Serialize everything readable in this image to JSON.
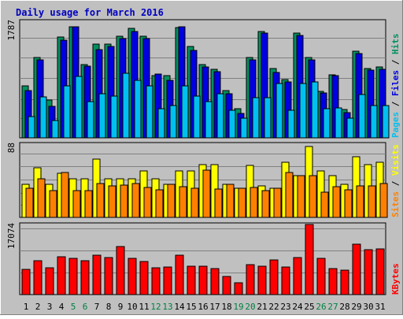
{
  "colors": {
    "background": "#c0c0c0",
    "plot_background": "#c0c0c0",
    "gridline": "#808080",
    "title": "#0000c0",
    "hits": "#009060",
    "files": "#0000e0",
    "pages": "#00c0f0",
    "visits": "#ffff00",
    "sites": "#ff8000",
    "kbytes": "#ff0000",
    "weekend_label": "#008040",
    "weekday_label": "#000000"
  },
  "chart_data": {
    "type": "bar",
    "title": "Daily usage for March 2016",
    "x": [
      "1",
      "2",
      "3",
      "4",
      "5",
      "6",
      "7",
      "8",
      "9",
      "10",
      "11",
      "12",
      "13",
      "14",
      "15",
      "16",
      "17",
      "18",
      "19",
      "20",
      "21",
      "22",
      "23",
      "24",
      "25",
      "26",
      "27",
      "28",
      "29",
      "30",
      "31"
    ],
    "weekend_days": [
      "5",
      "6",
      "12",
      "13",
      "19",
      "20",
      "26",
      "27"
    ],
    "panels": [
      {
        "id": "hits_files_pages",
        "ymax_label": "1787",
        "ymax": 1787,
        "legend": [
          {
            "text": "Pages",
            "color": "#00c0f0"
          },
          {
            "text": "Files",
            "color": "#0000e0"
          },
          {
            "text": "Hits",
            "color": "#009060"
          }
        ],
        "series": [
          {
            "name": "Hits",
            "color": "#009060",
            "values": [
              795,
              1233,
              574,
              1540,
              1703,
              1125,
              1432,
              1432,
              1558,
              1674,
              1558,
              955,
              957,
              1691,
              1400,
              1125,
              1052,
              721,
              450,
              1235,
              1635,
              1062,
              895,
              1608,
              1235,
              718,
              967,
              440,
              1325,
              1066,
              1086
            ]
          },
          {
            "name": "Files",
            "color": "#0000e0",
            "values": [
              720,
              1200,
              480,
              1500,
              1700,
              1100,
              1350,
              1400,
              1520,
              1630,
              1520,
              975,
              880,
              1700,
              1340,
              1090,
              1010,
              680,
              380,
              1200,
              1600,
              1000,
              860,
              1570,
              1190,
              690,
              950,
              390,
              1290,
              1040,
              1050
            ]
          },
          {
            "name": "Pages",
            "color": "#00c0f0",
            "values": [
              320,
              630,
              270,
              800,
              940,
              550,
              680,
              640,
              990,
              880,
              800,
              450,
              500,
              800,
              640,
              550,
              680,
              420,
              305,
              620,
              620,
              830,
              420,
              830,
              860,
              445,
              460,
              300,
              660,
              500,
              500
            ]
          }
        ]
      },
      {
        "id": "visits_sites",
        "ymax_label": "88",
        "ymax": 88,
        "legend": [
          {
            "text": "Sites",
            "color": "#ff8000"
          },
          {
            "text": "Visits",
            "color": "#ffff00"
          }
        ],
        "series": [
          {
            "name": "Visits",
            "color": "#ffff00",
            "values": [
              40,
              60,
              40,
              53,
              46,
              46,
              70,
              46,
              46,
              46,
              56,
              46,
              40,
              56,
              56,
              63,
              63,
              40,
              35,
              62,
              38,
              35,
              66,
              50,
              85,
              56,
              50,
              40,
              73,
              63,
              66
            ]
          },
          {
            "name": "Sites",
            "color": "#ff8000",
            "values": [
              35,
              46,
              32,
              54,
              32,
              32,
              41,
              38,
              39,
              41,
              36,
              33,
              40,
              37,
              35,
              57,
              34,
              40,
              35,
              36,
              32,
              35,
              54,
              50,
              50,
              30,
              37,
              33,
              38,
              38,
              41
            ]
          }
        ]
      },
      {
        "id": "kbytes",
        "ymax_label": "17074",
        "ymax": 17074,
        "legend": [
          {
            "text": "KBytes",
            "color": "#ff0000"
          }
        ],
        "series": [
          {
            "name": "KBytes",
            "color": "#ff0000",
            "values": [
              6200,
              8300,
              6600,
              9300,
              8900,
              8300,
              9500,
              9100,
              11700,
              8800,
              8000,
              6500,
              6800,
              9500,
              7000,
              7000,
              6300,
              4500,
              2800,
              7200,
              6900,
              8500,
              6800,
              9100,
              17074,
              8800,
              6400,
              6000,
              12300,
              11000,
              11200
            ]
          }
        ]
      }
    ]
  }
}
